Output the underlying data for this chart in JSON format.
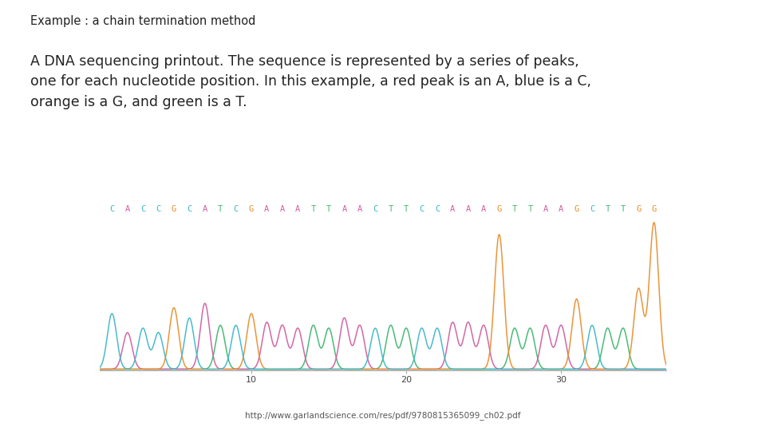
{
  "title": "Example : a chain termination method",
  "body_text": "A DNA sequencing printout. The sequence is represented by a series of peaks,\none for each nucleotide position. In this example, a red peak is an A, blue is a C,\norange is a G, and green is a T.",
  "url_text": "http://www.garlandscience.com/res/pdf/9780815365099_ch02.pdf",
  "sequence": "CACCGCATCGAAATTAACTTCCAAAGTTAAGCTTGG",
  "colors": {
    "A": "#d060a0",
    "C": "#40b8c8",
    "G": "#e89030",
    "T": "#40b870"
  },
  "background_color": "#ffffff",
  "title_fontsize": 10.5,
  "body_fontsize": 12.5,
  "seq_fontsize": 7.5,
  "url_fontsize": 7.5,
  "xlabel_ticks": [
    10,
    20,
    30
  ],
  "plot_bg": "#ffffff",
  "manual_heights": [
    0.38,
    0.25,
    0.28,
    0.25,
    0.42,
    0.35,
    0.45,
    0.3,
    0.3,
    0.38,
    0.32,
    0.3,
    0.28,
    0.3,
    0.28,
    0.35,
    0.3,
    0.28,
    0.3,
    0.28,
    0.28,
    0.28,
    0.32,
    0.32,
    0.3,
    0.92,
    0.28,
    0.28,
    0.3,
    0.3,
    0.48,
    0.3,
    0.28,
    0.28,
    0.55,
    1.0
  ]
}
